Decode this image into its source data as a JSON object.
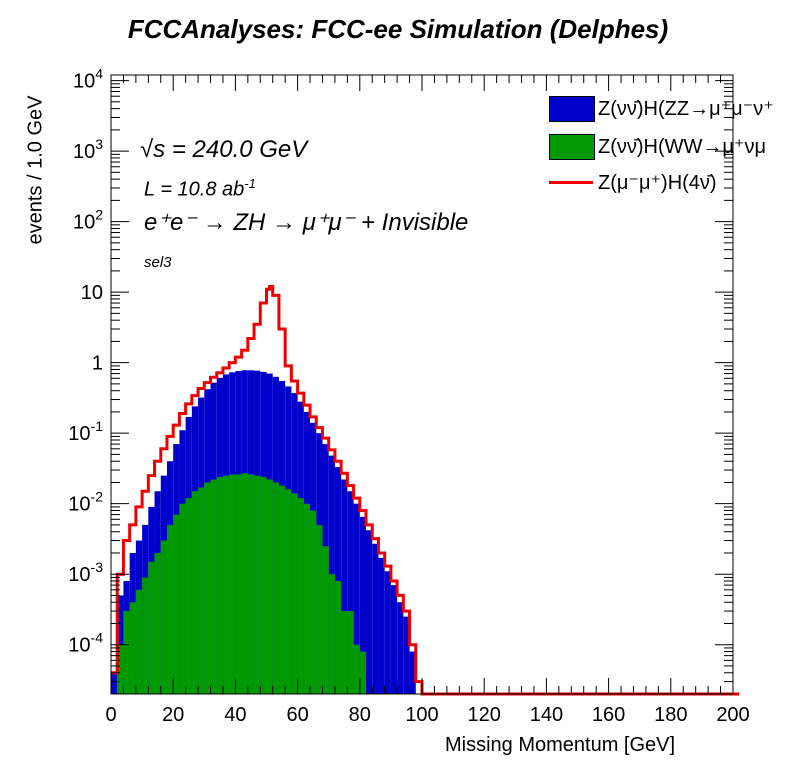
{
  "chart_data": {
    "type": "histogram",
    "title": "FCCAnalyses: FCC-ee Simulation (Delphes)",
    "xlabel": "Missing Momentum [GeV]",
    "ylabel": "events / 1.0 GeV",
    "xlim": [
      0,
      200
    ],
    "ylim": [
      2e-05,
      12000
    ],
    "yscale": "log",
    "x_ticks": [
      0,
      20,
      40,
      60,
      80,
      100,
      120,
      140,
      160,
      180,
      200
    ],
    "y_tick_labels": [
      "10^-4",
      "10^-3",
      "10^-2",
      "10^-1",
      "1",
      "10",
      "10^2",
      "10^3",
      "10^4"
    ],
    "annotations": {
      "sqrt_s": "√s = 240.0 GeV",
      "lumi": "L = 10.8 ab",
      "lumi_exp": "-1",
      "process": "e⁺e⁻ → ZH → μ⁺μ⁻ + Invisible",
      "selection": "sel3"
    },
    "legend_position": "top-right",
    "series": [
      {
        "name": "Z(νν̄)H(ZZ→μ⁺μ⁻ν⁺",
        "style": "filled-stack",
        "color": "#0000cc",
        "x": [
          0,
          2,
          4,
          6,
          8,
          10,
          12,
          14,
          16,
          18,
          20,
          22,
          24,
          26,
          28,
          30,
          32,
          34,
          36,
          38,
          40,
          42,
          44,
          46,
          48,
          50,
          52,
          54,
          56,
          58,
          60,
          62,
          64,
          66,
          68,
          70,
          72,
          74,
          76,
          78,
          80,
          82,
          84,
          86,
          88,
          90,
          92,
          94,
          96,
          98
        ],
        "values": [
          4e-05,
          0.0005,
          0.0008,
          0.002,
          0.003,
          0.005,
          0.009,
          0.015,
          0.025,
          0.04,
          0.07,
          0.11,
          0.17,
          0.24,
          0.32,
          0.42,
          0.52,
          0.61,
          0.68,
          0.73,
          0.76,
          0.78,
          0.78,
          0.77,
          0.74,
          0.7,
          0.63,
          0.55,
          0.46,
          0.37,
          0.28,
          0.2,
          0.14,
          0.1,
          0.07,
          0.048,
          0.033,
          0.022,
          0.015,
          0.01,
          0.0065,
          0.0042,
          0.0027,
          0.0017,
          0.0011,
          0.0007,
          0.0004,
          0.00025,
          8e-05,
          2e-05
        ]
      },
      {
        "name": "Z(νν̄)H(WW→μ⁺νμ",
        "style": "filled",
        "color": "#009900",
        "x": [
          0,
          2,
          4,
          6,
          8,
          10,
          12,
          14,
          16,
          18,
          20,
          22,
          24,
          26,
          28,
          30,
          32,
          34,
          36,
          38,
          40,
          42,
          44,
          46,
          48,
          50,
          52,
          54,
          56,
          58,
          60,
          62,
          64,
          66,
          68,
          70,
          72,
          74,
          76,
          78,
          80,
          82,
          84,
          86,
          88,
          90,
          92,
          94,
          96,
          98
        ],
        "values": [
          2e-05,
          0.0001,
          0.0003,
          0.0004,
          0.0006,
          0.0009,
          0.0015,
          0.002,
          0.003,
          0.005,
          0.007,
          0.01,
          0.012,
          0.015,
          0.017,
          0.02,
          0.022,
          0.024,
          0.025,
          0.026,
          0.026,
          0.027,
          0.026,
          0.025,
          0.024,
          0.022,
          0.02,
          0.018,
          0.016,
          0.014,
          0.012,
          0.01,
          0.008,
          0.005,
          0.0025,
          0.001,
          0.0008,
          0.0003,
          0.0003,
          0.0001,
          8e-05,
          2e-05,
          2e-05,
          2e-05,
          2e-05,
          2e-05,
          2e-05,
          2e-05,
          2e-05,
          2e-05
        ]
      },
      {
        "name": "Z(μ⁻μ⁺)H(4ν̄)",
        "style": "line",
        "color": "#ee0000",
        "x": [
          0,
          2,
          4,
          6,
          8,
          10,
          12,
          14,
          16,
          18,
          20,
          22,
          24,
          26,
          28,
          30,
          32,
          34,
          36,
          38,
          40,
          42,
          44,
          46,
          48,
          50,
          51,
          52,
          54,
          56,
          58,
          60,
          62,
          64,
          66,
          68,
          70,
          72,
          74,
          76,
          78,
          80,
          82,
          84,
          86,
          88,
          90,
          92,
          94,
          96,
          98,
          100,
          200
        ],
        "values": [
          4e-05,
          0.001,
          0.003,
          0.005,
          0.009,
          0.015,
          0.025,
          0.04,
          0.06,
          0.09,
          0.13,
          0.19,
          0.26,
          0.34,
          0.43,
          0.52,
          0.62,
          0.72,
          0.84,
          1.0,
          1.2,
          1.5,
          2.2,
          3.5,
          7.0,
          11.0,
          12.0,
          9.0,
          3.0,
          0.9,
          0.55,
          0.37,
          0.25,
          0.17,
          0.12,
          0.085,
          0.058,
          0.04,
          0.027,
          0.018,
          0.012,
          0.008,
          0.005,
          0.0032,
          0.002,
          0.0013,
          0.0008,
          0.0005,
          0.0003,
          0.0001,
          3e-05,
          2e-05,
          2e-05
        ]
      }
    ]
  }
}
